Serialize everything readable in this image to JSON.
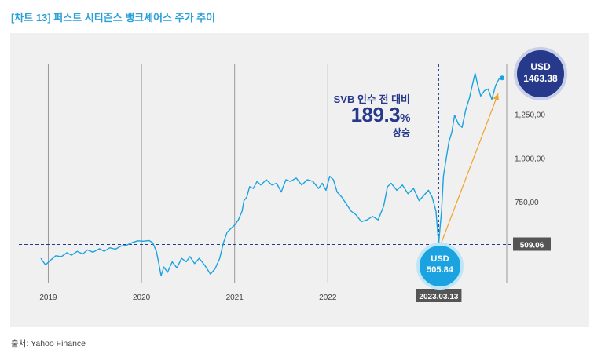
{
  "title": "[차트 13] 퍼스트 시티즌스 뱅크셰어스 주가 추이",
  "source": "출처: Yahoo Finance",
  "colors": {
    "line": "#1aa3e0",
    "navy": "#26398a",
    "accent": "#2a9fd8",
    "arrow": "#f0a22a",
    "panel": "#f0f0f0",
    "tag": "#555555"
  },
  "annotation": {
    "label": "SVB 인수 전 대비",
    "percent_value": "189.3",
    "percent_sign": "%",
    "direction": "상승"
  },
  "high_bubble": {
    "currency": "USD",
    "value": "1463.38"
  },
  "low_bubble": {
    "currency": "USD",
    "value": "505.84"
  },
  "chart_data": {
    "type": "line",
    "title": "[차트 13] 퍼스트 시티즌스 뱅크셰어스 주가 추이",
    "xlabel": "",
    "ylabel": "",
    "x_ticks": [
      {
        "label": "2019",
        "t": 2019.0
      },
      {
        "label": "2020",
        "t": 2020.0
      },
      {
        "label": "2021",
        "t": 2021.0
      },
      {
        "label": "2022",
        "t": 2022.0
      }
    ],
    "event": {
      "label": "2023.03.13",
      "t": 2023.19,
      "value": 505.84
    },
    "y_ticks": [
      {
        "label": "750,00",
        "value": 750
      },
      {
        "label": "1,000,00",
        "value": 1000
      },
      {
        "label": "1,250,00",
        "value": 1250
      }
    ],
    "reference_line": {
      "value": 509.06,
      "label": "509.06"
    },
    "xlim": [
      2018.92,
      2023.92
    ],
    "ylim": [
      300,
      1550
    ],
    "series": [
      {
        "name": "First Citizens BancShares (USD)",
        "points": [
          [
            2018.92,
            430
          ],
          [
            2018.97,
            392
          ],
          [
            2019.02,
            418
          ],
          [
            2019.08,
            445
          ],
          [
            2019.14,
            440
          ],
          [
            2019.2,
            462
          ],
          [
            2019.25,
            448
          ],
          [
            2019.31,
            470
          ],
          [
            2019.37,
            455
          ],
          [
            2019.42,
            478
          ],
          [
            2019.48,
            465
          ],
          [
            2019.55,
            485
          ],
          [
            2019.6,
            470
          ],
          [
            2019.66,
            490
          ],
          [
            2019.72,
            482
          ],
          [
            2019.78,
            500
          ],
          [
            2019.84,
            505
          ],
          [
            2019.9,
            520
          ],
          [
            2019.96,
            530
          ],
          [
            2020.02,
            528
          ],
          [
            2020.08,
            532
          ],
          [
            2020.12,
            520
          ],
          [
            2020.16,
            470
          ],
          [
            2020.19,
            390
          ],
          [
            2020.21,
            330
          ],
          [
            2020.24,
            380
          ],
          [
            2020.28,
            350
          ],
          [
            2020.33,
            410
          ],
          [
            2020.38,
            375
          ],
          [
            2020.43,
            430
          ],
          [
            2020.48,
            410
          ],
          [
            2020.52,
            440
          ],
          [
            2020.57,
            400
          ],
          [
            2020.62,
            430
          ],
          [
            2020.68,
            390
          ],
          [
            2020.74,
            340
          ],
          [
            2020.79,
            370
          ],
          [
            2020.84,
            430
          ],
          [
            2020.88,
            520
          ],
          [
            2020.92,
            580
          ],
          [
            2020.96,
            600
          ],
          [
            2021.0,
            620
          ],
          [
            2021.04,
            650
          ],
          [
            2021.08,
            700
          ],
          [
            2021.1,
            760
          ],
          [
            2021.13,
            780
          ],
          [
            2021.16,
            840
          ],
          [
            2021.2,
            830
          ],
          [
            2021.24,
            870
          ],
          [
            2021.28,
            850
          ],
          [
            2021.34,
            880
          ],
          [
            2021.4,
            850
          ],
          [
            2021.45,
            860
          ],
          [
            2021.5,
            810
          ],
          [
            2021.55,
            880
          ],
          [
            2021.6,
            870
          ],
          [
            2021.66,
            890
          ],
          [
            2021.72,
            850
          ],
          [
            2021.78,
            880
          ],
          [
            2021.84,
            870
          ],
          [
            2021.9,
            830
          ],
          [
            2021.94,
            860
          ],
          [
            2021.98,
            820
          ],
          [
            2022.02,
            900
          ],
          [
            2022.06,
            880
          ],
          [
            2022.1,
            810
          ],
          [
            2022.15,
            780
          ],
          [
            2022.2,
            740
          ],
          [
            2022.25,
            700
          ],
          [
            2022.3,
            680
          ],
          [
            2022.36,
            640
          ],
          [
            2022.42,
            650
          ],
          [
            2022.48,
            670
          ],
          [
            2022.54,
            650
          ],
          [
            2022.6,
            730
          ],
          [
            2022.64,
            840
          ],
          [
            2022.68,
            860
          ],
          [
            2022.74,
            820
          ],
          [
            2022.8,
            850
          ],
          [
            2022.86,
            800
          ],
          [
            2022.92,
            830
          ],
          [
            2022.98,
            760
          ],
          [
            2023.03,
            790
          ],
          [
            2023.08,
            820
          ],
          [
            2023.12,
            780
          ],
          [
            2023.16,
            700
          ],
          [
            2023.19,
            510
          ],
          [
            2023.2,
            580
          ],
          [
            2023.22,
            700
          ],
          [
            2023.24,
            900
          ],
          [
            2023.27,
            1000
          ],
          [
            2023.3,
            1100
          ],
          [
            2023.33,
            1150
          ],
          [
            2023.36,
            1250
          ],
          [
            2023.4,
            1200
          ],
          [
            2023.44,
            1180
          ],
          [
            2023.48,
            1280
          ],
          [
            2023.52,
            1350
          ],
          [
            2023.55,
            1420
          ],
          [
            2023.58,
            1490
          ],
          [
            2023.61,
            1420
          ],
          [
            2023.64,
            1360
          ],
          [
            2023.68,
            1390
          ],
          [
            2023.72,
            1400
          ],
          [
            2023.76,
            1340
          ],
          [
            2023.8,
            1420
          ],
          [
            2023.84,
            1460
          ],
          [
            2023.87,
            1463.38
          ]
        ]
      }
    ]
  }
}
